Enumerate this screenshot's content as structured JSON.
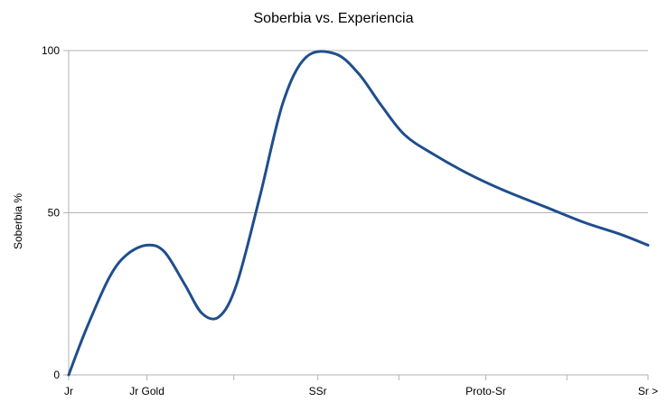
{
  "chart_data": {
    "type": "line",
    "title": "Soberbia vs. Experiencia",
    "xlabel": "",
    "ylabel": "Soberbia %",
    "ylim": [
      0,
      100
    ],
    "y_ticks": [
      0,
      50,
      100
    ],
    "xlim": [
      0,
      10
    ],
    "x_ticks": [
      {
        "x": 0,
        "label": "Jr"
      },
      {
        "x": 1.35,
        "label": "Jr Gold"
      },
      {
        "x": 2.85,
        "label": ""
      },
      {
        "x": 4.3,
        "label": "SSr"
      },
      {
        "x": 5.7,
        "label": ""
      },
      {
        "x": 7.2,
        "label": "Proto-Sr"
      },
      {
        "x": 8.6,
        "label": ""
      },
      {
        "x": 10,
        "label": "Sr >"
      }
    ],
    "grid": {
      "horizontal": true,
      "vertical": false
    },
    "line_color": "#1f4e8c",
    "series": [
      {
        "name": "",
        "x": [
          0,
          0.3,
          0.7,
          1.0,
          1.35,
          1.65,
          2.0,
          2.3,
          2.6,
          2.9,
          3.3,
          3.7,
          4.1,
          4.6,
          5.0,
          5.4,
          5.8,
          6.3,
          6.9,
          7.5,
          8.2,
          8.9,
          9.5,
          10.0
        ],
        "values": [
          0,
          14,
          30,
          37,
          40,
          38,
          28,
          19,
          18,
          28,
          55,
          84,
          98,
          99,
          93,
          83,
          74,
          68,
          62,
          57,
          52,
          47,
          43.5,
          40
        ]
      }
    ]
  }
}
